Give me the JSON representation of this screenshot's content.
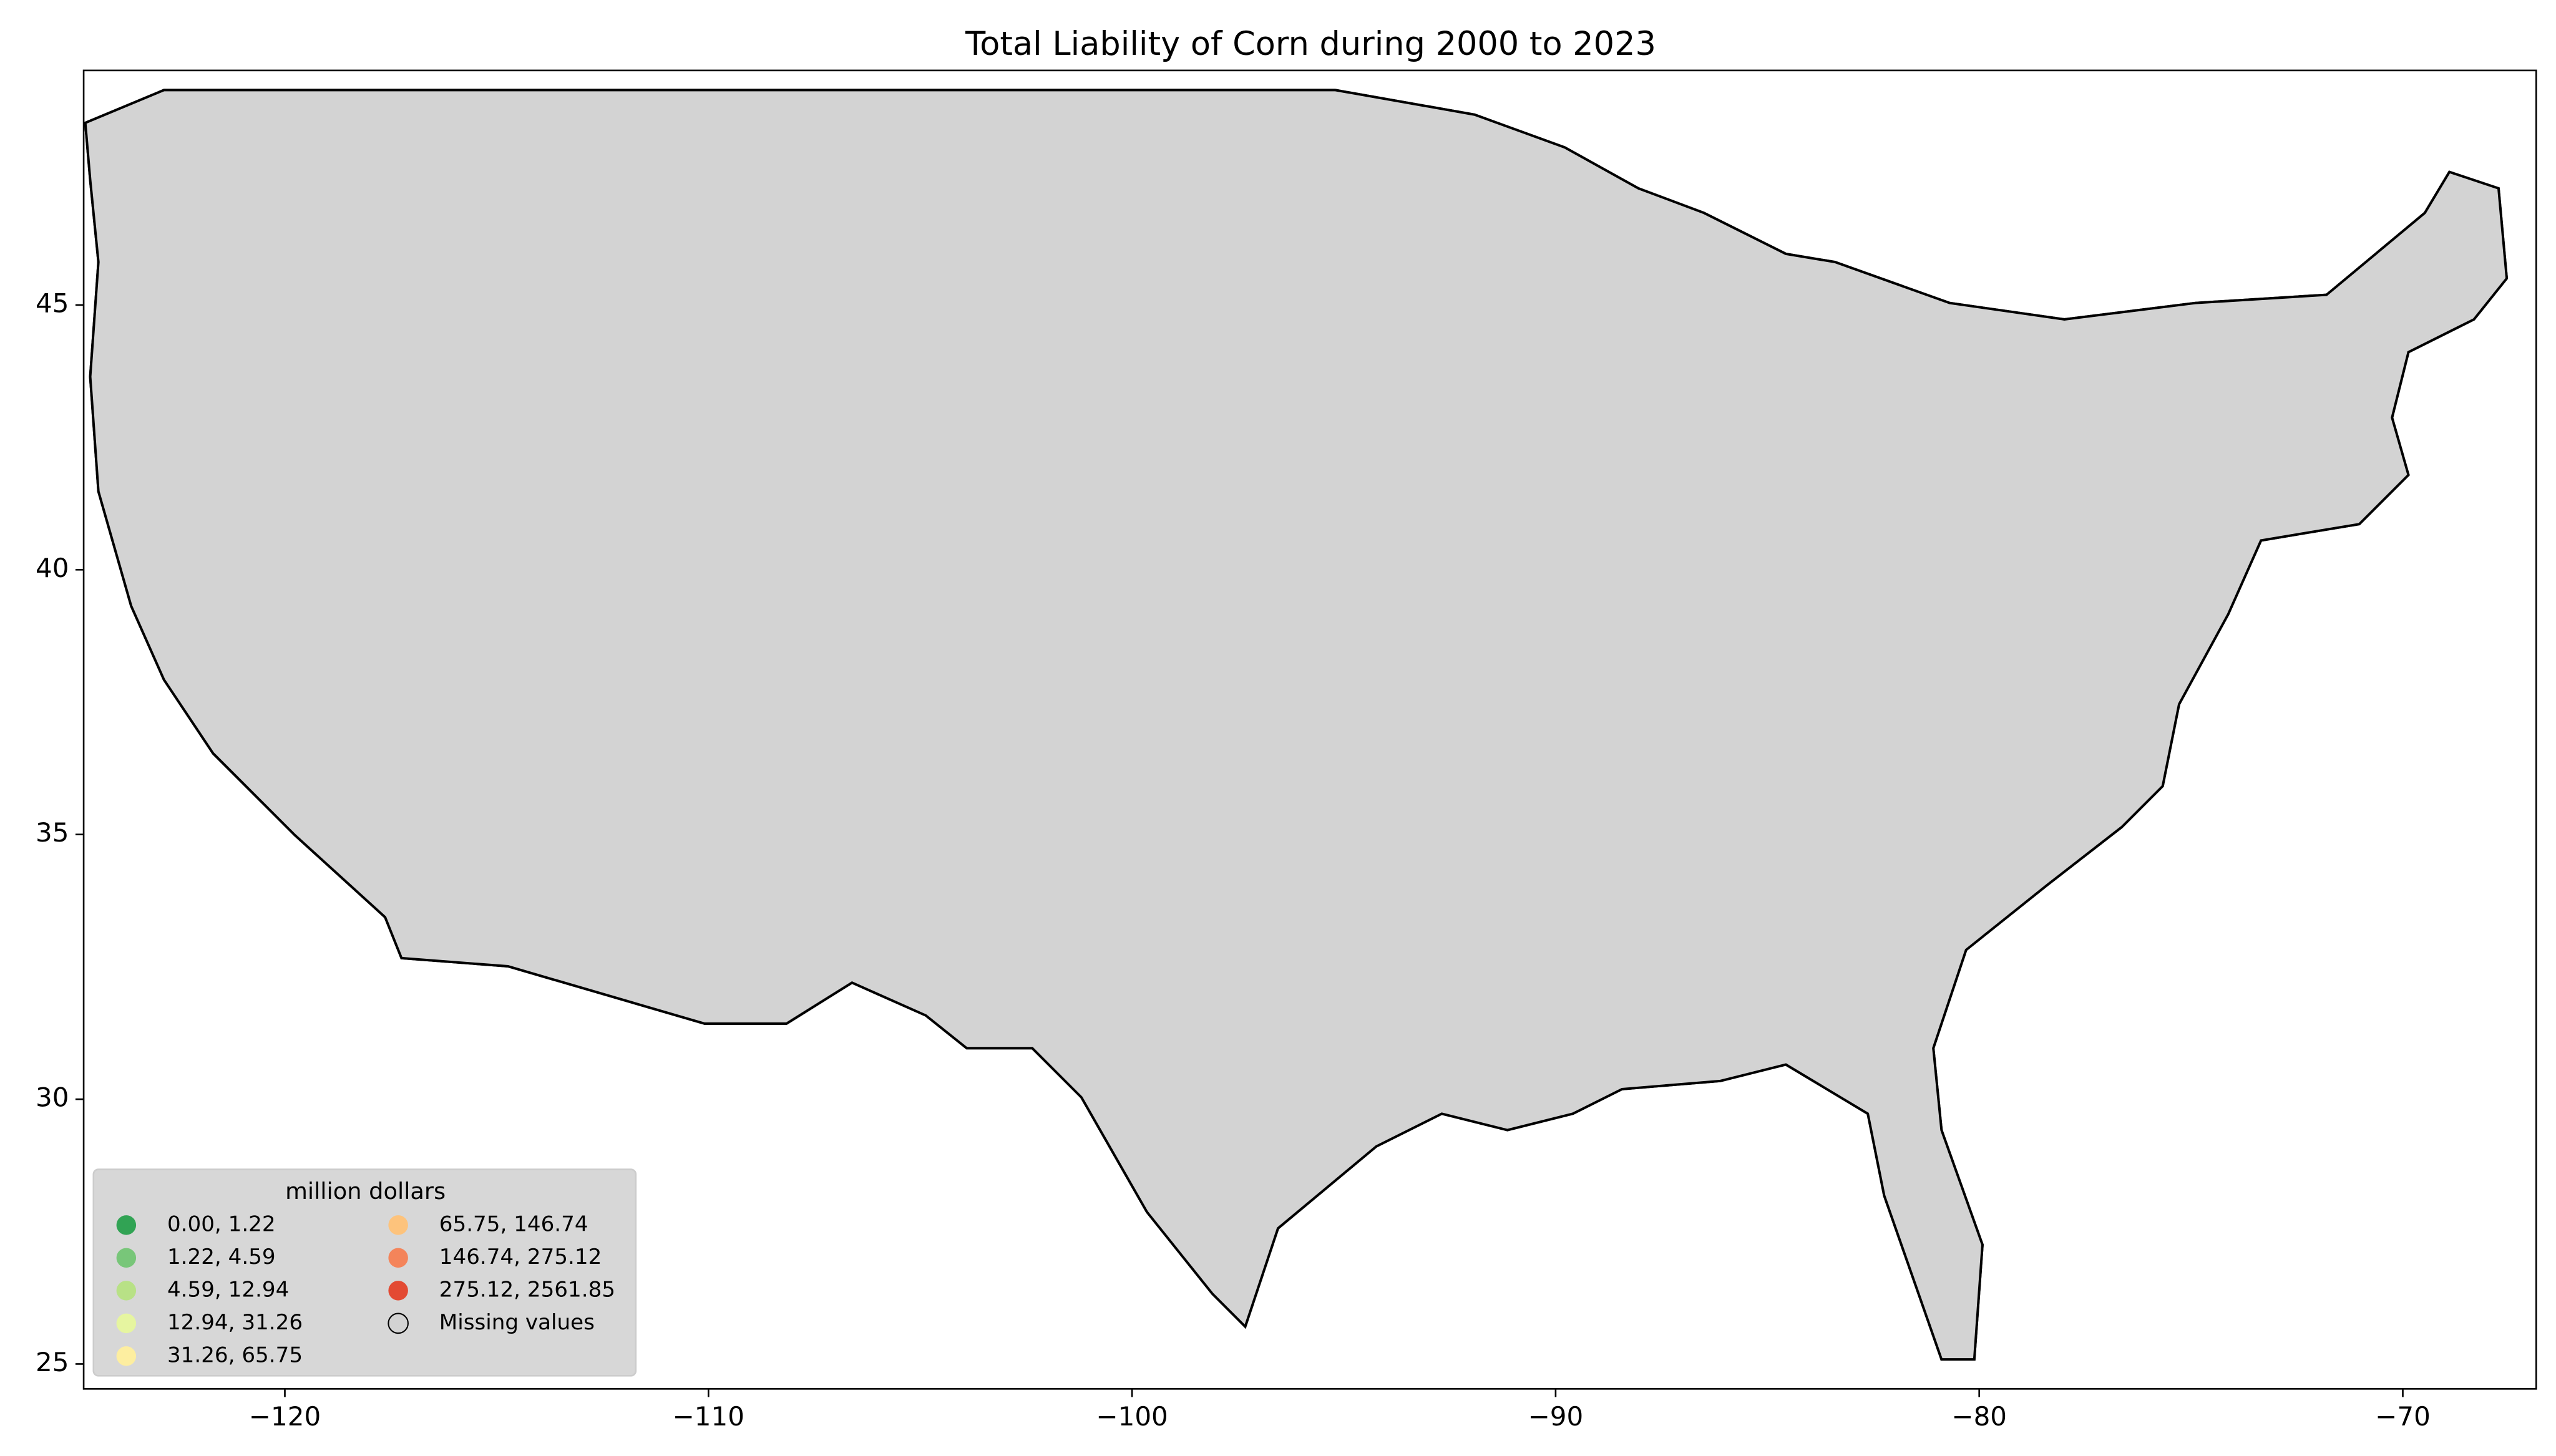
{
  "chart_data": {
    "type": "choropleth",
    "title": "Total Liability of Corn during 2000 to 2023",
    "xlim": [
      -124.75,
      -66.85
    ],
    "ylim": [
      24.53,
      49.43
    ],
    "xticks": [
      {
        "value": -120,
        "label": "−120"
      },
      {
        "value": -110,
        "label": "−110"
      },
      {
        "value": -100,
        "label": "−100"
      },
      {
        "value": -90,
        "label": "−90"
      },
      {
        "value": -80,
        "label": "−80"
      },
      {
        "value": -70,
        "label": "−70"
      }
    ],
    "yticks": [
      25,
      30,
      35,
      40,
      45
    ],
    "legend": {
      "title": "million dollars",
      "corner": "lower left",
      "items": [
        {
          "label": "0.00, 1.22",
          "color": "#31a354"
        },
        {
          "label": "1.22, 4.59",
          "color": "#78c679"
        },
        {
          "label": "4.59, 12.94",
          "color": "#b8e186"
        },
        {
          "label": "12.94, 31.26",
          "color": "#e6f5a0"
        },
        {
          "label": "31.26, 65.75",
          "color": "#fdeea0"
        },
        {
          "label": "65.75, 146.74",
          "color": "#fdc37c"
        },
        {
          "label": "146.74, 275.12",
          "color": "#f4845a"
        },
        {
          "label": "275.12, 2561.85",
          "color": "#e34a33"
        }
      ],
      "missing": {
        "label": "Missing values",
        "color": "#d3d3d3"
      }
    }
  }
}
